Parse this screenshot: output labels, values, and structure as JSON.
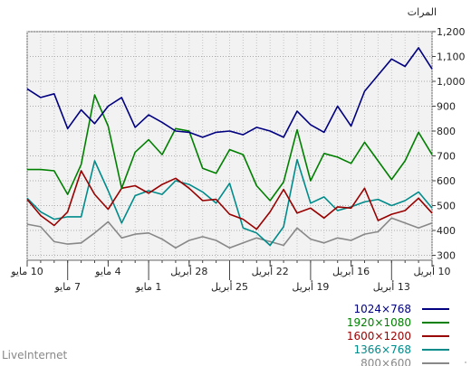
{
  "footer": {
    "brand": "LiveInternet"
  },
  "chart_data": {
    "type": "line",
    "unit_label": "المرات",
    "ylim": [
      280,
      1200
    ],
    "yticks": [
      300,
      400,
      500,
      600,
      700,
      800,
      900,
      1000,
      1100,
      1200
    ],
    "ytick_labels": [
      "300",
      "400",
      "500",
      "600",
      "700",
      "800",
      "900",
      "1,000",
      "1,100",
      "1,200"
    ],
    "x_tick_labels_row1": [
      {
        "i": 30,
        "label": "10 مايو"
      },
      {
        "i": 24,
        "label": "4 مايو"
      },
      {
        "i": 18,
        "label": "28 أبريل"
      },
      {
        "i": 12,
        "label": "22 أبريل"
      },
      {
        "i": 6,
        "label": "16 أبريل"
      },
      {
        "i": 0,
        "label": "10 أبريل"
      }
    ],
    "x_tick_labels_row2": [
      {
        "i": 27,
        "label": "7 مايو"
      },
      {
        "i": 21,
        "label": "1 مايو"
      },
      {
        "i": 15,
        "label": "25 أبريل"
      },
      {
        "i": 9,
        "label": "19 أبريل"
      },
      {
        "i": 3,
        "label": "13 أبريل"
      }
    ],
    "grid": true,
    "legend_position": "bottom-right",
    "series": [
      {
        "name": "1024×768",
        "color": "#000080",
        "values": [
          1050,
          1135,
          1060,
          1090,
          1025,
          960,
          820,
          900,
          795,
          825,
          880,
          775,
          800,
          815,
          785,
          800,
          795,
          775,
          795,
          800,
          835,
          865,
          815,
          935,
          900,
          830,
          885,
          810,
          950,
          935,
          970
        ]
      },
      {
        "name": "1920×1080",
        "color": "#008000",
        "values": [
          705,
          795,
          680,
          605,
          680,
          755,
          670,
          695,
          710,
          600,
          805,
          595,
          520,
          580,
          705,
          725,
          630,
          650,
          800,
          810,
          705,
          765,
          715,
          570,
          820,
          945,
          665,
          545,
          640,
          645,
          645
        ]
      },
      {
        "name": "1600×1200",
        "color": "#990000",
        "values": [
          470,
          530,
          480,
          465,
          440,
          570,
          490,
          495,
          450,
          490,
          470,
          565,
          475,
          405,
          445,
          465,
          525,
          520,
          570,
          610,
          585,
          550,
          580,
          570,
          485,
          545,
          640,
          475,
          420,
          460,
          525
        ]
      },
      {
        "name": "1366×768",
        "color": "#008b8b",
        "values": [
          490,
          555,
          520,
          500,
          525,
          515,
          495,
          480,
          535,
          510,
          685,
          415,
          340,
          390,
          410,
          590,
          510,
          555,
          585,
          600,
          545,
          560,
          540,
          430,
          560,
          680,
          455,
          455,
          445,
          475,
          530
        ]
      },
      {
        "name": "800×600",
        "color": "#888888",
        "values": [
          430,
          410,
          430,
          450,
          395,
          385,
          360,
          370,
          350,
          365,
          410,
          340,
          355,
          370,
          350,
          330,
          360,
          375,
          360,
          330,
          365,
          390,
          385,
          370,
          435,
          390,
          350,
          345,
          355,
          415,
          425
        ]
      }
    ]
  }
}
